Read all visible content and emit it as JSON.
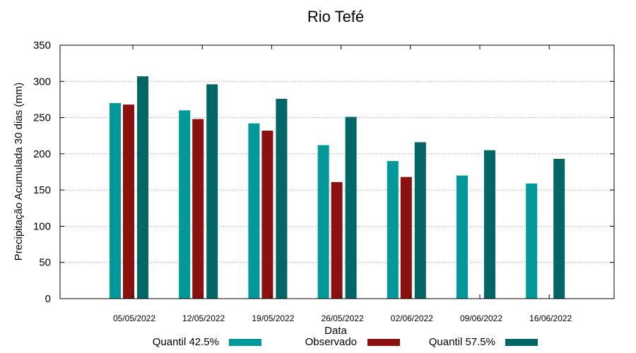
{
  "chart_data": {
    "type": "bar",
    "title": "Rio Tefé",
    "xlabel": "Data",
    "ylabel": "Precipitação Acumulada 30 dias (mm)",
    "ylim": [
      0,
      350
    ],
    "yticks": [
      0,
      50,
      100,
      150,
      200,
      250,
      300,
      350
    ],
    "grid": true,
    "legend_position": "bottom",
    "categories": [
      "05/05/2022",
      "12/05/2022",
      "19/05/2022",
      "26/05/2022",
      "02/06/2022",
      "09/06/2022",
      "16/06/2022"
    ],
    "series": [
      {
        "name": "Quantil 42.5%",
        "color": "#009999",
        "values": [
          270,
          260,
          242,
          212,
          190,
          170,
          159
        ]
      },
      {
        "name": "Observado",
        "color": "#8b1010",
        "values": [
          268,
          248,
          232,
          161,
          168,
          null,
          null
        ]
      },
      {
        "name": "Quantil 57.5%",
        "color": "#006666",
        "values": [
          307,
          296,
          276,
          251,
          216,
          205,
          193
        ]
      }
    ]
  }
}
